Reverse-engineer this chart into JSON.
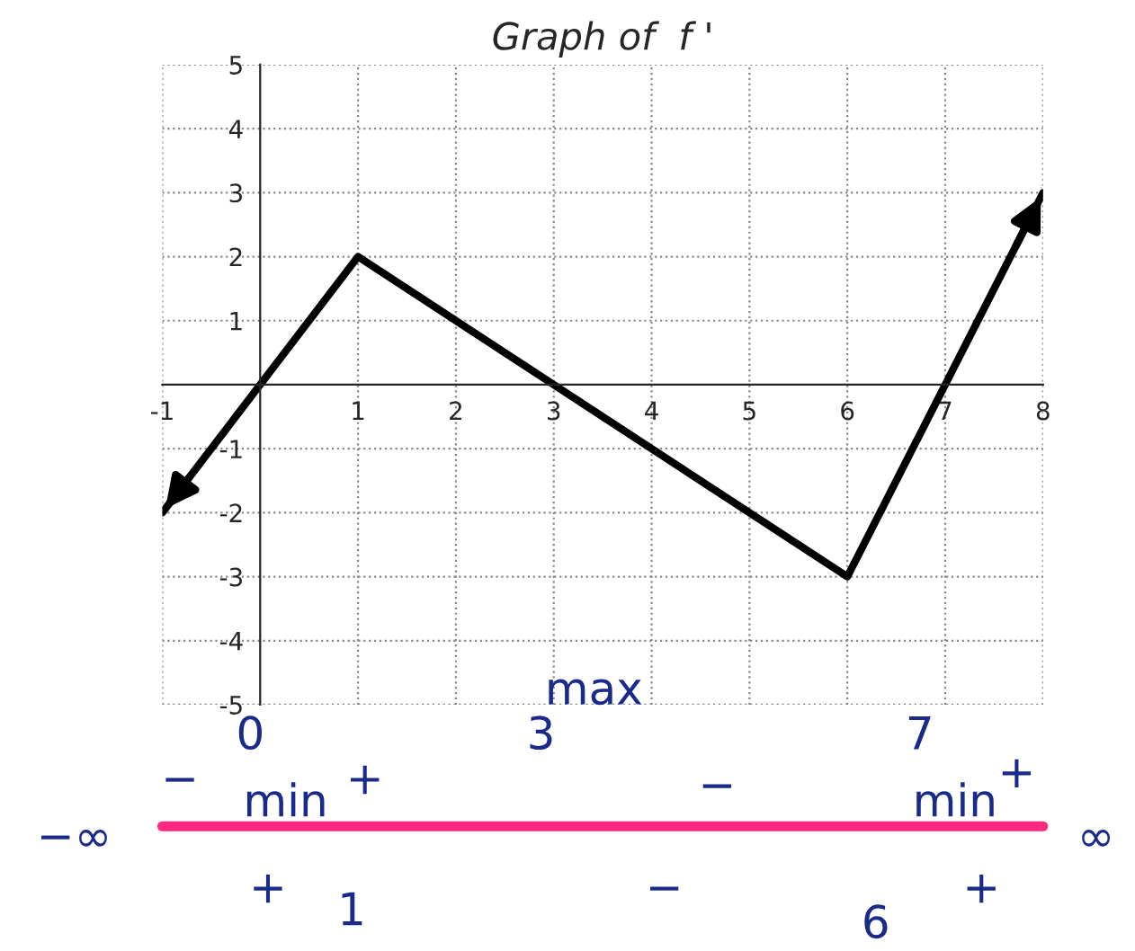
{
  "chart_data": {
    "type": "line",
    "title": "Graph of  f '",
    "x": [
      -1,
      1,
      6,
      8
    ],
    "series": [
      {
        "color": "#000000",
        "values": [
          -2,
          2,
          -3,
          3
        ]
      }
    ],
    "xlim": [
      -1,
      8
    ],
    "ylim": [
      -5,
      5
    ],
    "xticks": [
      -1,
      1,
      2,
      3,
      4,
      5,
      6,
      7,
      8
    ],
    "yticks": [
      -5,
      -4,
      -3,
      -2,
      -1,
      1,
      2,
      3,
      4,
      5
    ],
    "grid": true,
    "marker": "none",
    "line_style": "solid",
    "annotations": [
      "max",
      "3",
      "0",
      "7",
      "−",
      "+",
      "−",
      "+",
      "−∞",
      "min",
      "min",
      "∞",
      "+",
      "−",
      "+",
      "1",
      "6"
    ]
  }
}
